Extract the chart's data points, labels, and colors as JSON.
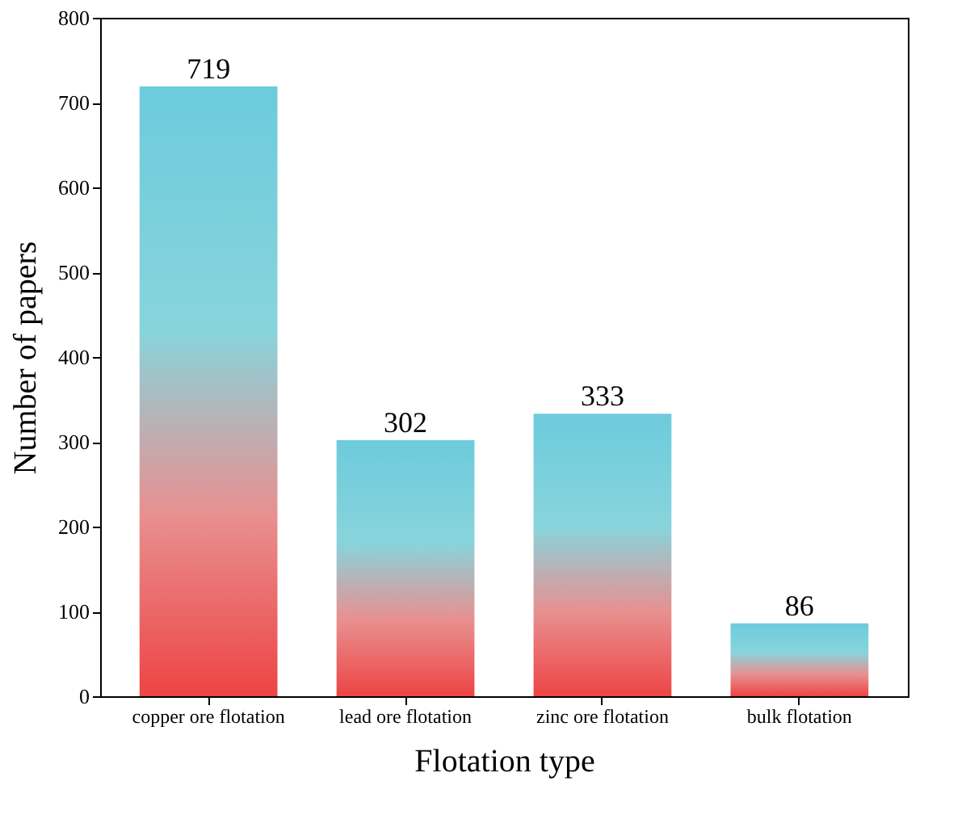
{
  "chart_data": {
    "type": "bar",
    "categories": [
      "copper ore flotation",
      "lead ore flotation",
      "zinc ore flotation",
      "bulk flotation"
    ],
    "values": [
      719,
      302,
      333,
      86
    ],
    "color": "#6ccbdc",
    "xlabel": "Flotation type",
    "ylabel": "Number of papers",
    "ylim": [
      0,
      800
    ],
    "yticks": [
      0,
      100,
      200,
      300,
      400,
      500,
      600,
      700,
      800
    ],
    "data_labels": true,
    "grid": false
  }
}
